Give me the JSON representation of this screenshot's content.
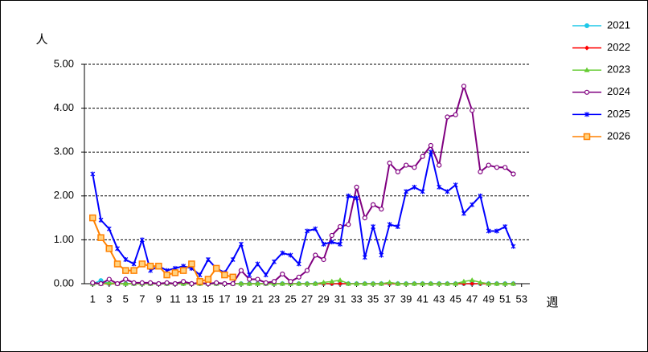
{
  "chart_data": {
    "type": "line",
    "y_label": "人",
    "x_label": "週",
    "x": [
      1,
      2,
      3,
      4,
      5,
      6,
      7,
      8,
      9,
      10,
      11,
      12,
      13,
      14,
      15,
      16,
      17,
      18,
      19,
      20,
      21,
      22,
      23,
      24,
      25,
      26,
      27,
      28,
      29,
      30,
      31,
      32,
      33,
      34,
      35,
      36,
      37,
      38,
      39,
      40,
      41,
      42,
      43,
      44,
      45,
      46,
      47,
      48,
      49,
      50,
      51,
      52,
      53
    ],
    "xlim": [
      0,
      54
    ],
    "xticks": [
      1,
      3,
      5,
      7,
      9,
      11,
      13,
      15,
      17,
      19,
      21,
      23,
      25,
      27,
      29,
      31,
      33,
      35,
      37,
      39,
      41,
      43,
      45,
      47,
      49,
      51,
      53
    ],
    "ylim": [
      0,
      5
    ],
    "yticks": [
      {
        "value": 0,
        "label": "0.00"
      },
      {
        "value": 1,
        "label": "1.00"
      },
      {
        "value": 2,
        "label": "2.00"
      },
      {
        "value": 3,
        "label": "3.00"
      },
      {
        "value": 4,
        "label": "4.00"
      },
      {
        "value": 5,
        "label": "5.00"
      }
    ],
    "grid": true,
    "legend": "right",
    "series": [
      {
        "name": "2021",
        "color": "#1ec8e8",
        "marker": "circle",
        "values": [
          0,
          0.07,
          0,
          0,
          0,
          0,
          0,
          0,
          0,
          0,
          0,
          0,
          0,
          0,
          0,
          0,
          0,
          0,
          0,
          0,
          0,
          0,
          0,
          0,
          0,
          0,
          0,
          0,
          0,
          0,
          0,
          0,
          0,
          0,
          0,
          0,
          0,
          0,
          0,
          0,
          0,
          0,
          0,
          0,
          0,
          0,
          0,
          0,
          0,
          0,
          0,
          0,
          null
        ]
      },
      {
        "name": "2022",
        "color": "#ff0000",
        "marker": "diamond",
        "values": [
          0,
          0,
          0,
          0,
          0,
          0,
          0,
          0,
          0,
          0,
          0,
          0,
          0,
          0,
          0,
          0,
          0,
          0,
          0,
          0,
          0,
          0,
          0,
          0,
          0,
          0,
          0,
          0,
          0,
          0,
          0,
          0,
          0,
          0,
          0,
          0,
          0,
          0,
          0,
          0,
          0,
          0,
          0,
          0,
          0,
          0,
          0,
          0,
          0,
          0,
          0,
          0,
          null
        ]
      },
      {
        "name": "2023",
        "color": "#66cc33",
        "marker": "triangle",
        "values": [
          0,
          0,
          0.02,
          0,
          0,
          0,
          0,
          0,
          0,
          0,
          0,
          0,
          0,
          0,
          0,
          0,
          0,
          0,
          0,
          0,
          0,
          0,
          0,
          0,
          0,
          0,
          0,
          0,
          0.03,
          0.05,
          0.08,
          0,
          0,
          0,
          0,
          0,
          0.03,
          0,
          0,
          0,
          0,
          0,
          0,
          0,
          0,
          0.05,
          0.08,
          0.03,
          0,
          0,
          0,
          0,
          null
        ]
      },
      {
        "name": "2024",
        "color": "#800080",
        "marker": "open-circle",
        "values": [
          0.02,
          0,
          0.1,
          0,
          0.1,
          0.02,
          0.02,
          0.02,
          0,
          0.02,
          0,
          0.05,
          0,
          0.02,
          0,
          0.02,
          0,
          0,
          0.3,
          0.1,
          0.1,
          0.02,
          0.05,
          0.22,
          0.05,
          0.15,
          0.3,
          0.65,
          0.55,
          1.1,
          1.3,
          1.35,
          2.2,
          1.5,
          1.8,
          1.7,
          2.75,
          2.55,
          2.7,
          2.65,
          2.9,
          3.15,
          2.7,
          3.8,
          3.85,
          4.5,
          3.95,
          2.55,
          2.7,
          2.65,
          2.65,
          2.5,
          null
        ]
      },
      {
        "name": "2025",
        "color": "#0000ff",
        "marker": "star",
        "values": [
          2.5,
          1.45,
          1.25,
          0.8,
          0.55,
          0.45,
          1.0,
          0.3,
          0.4,
          0.3,
          0.35,
          0.4,
          0.35,
          0.2,
          0.55,
          0.35,
          0.25,
          0.55,
          0.9,
          0.2,
          0.45,
          0.2,
          0.5,
          0.7,
          0.65,
          0.45,
          1.2,
          1.25,
          0.9,
          0.95,
          0.9,
          2.0,
          1.95,
          0.6,
          1.3,
          0.65,
          1.35,
          1.3,
          2.1,
          2.2,
          2.1,
          3.0,
          2.2,
          2.1,
          2.25,
          1.6,
          1.8,
          2.0,
          1.2,
          1.2,
          1.3,
          0.85,
          null
        ]
      },
      {
        "name": "2026",
        "color": "#ff8000",
        "marker": "square",
        "values": [
          1.5,
          1.05,
          0.8,
          0.45,
          0.3,
          0.3,
          0.45,
          0.4,
          0.4,
          0.2,
          0.25,
          0.3,
          0.45,
          0.05,
          0.1,
          0.35,
          0.2,
          0.15,
          null,
          null,
          null,
          null,
          null,
          null,
          null,
          null,
          null,
          null,
          null,
          null,
          null,
          null,
          null,
          null,
          null,
          null,
          null,
          null,
          null,
          null,
          null,
          null,
          null,
          null,
          null,
          null,
          null,
          null,
          null,
          null,
          null,
          null,
          null
        ]
      }
    ]
  }
}
